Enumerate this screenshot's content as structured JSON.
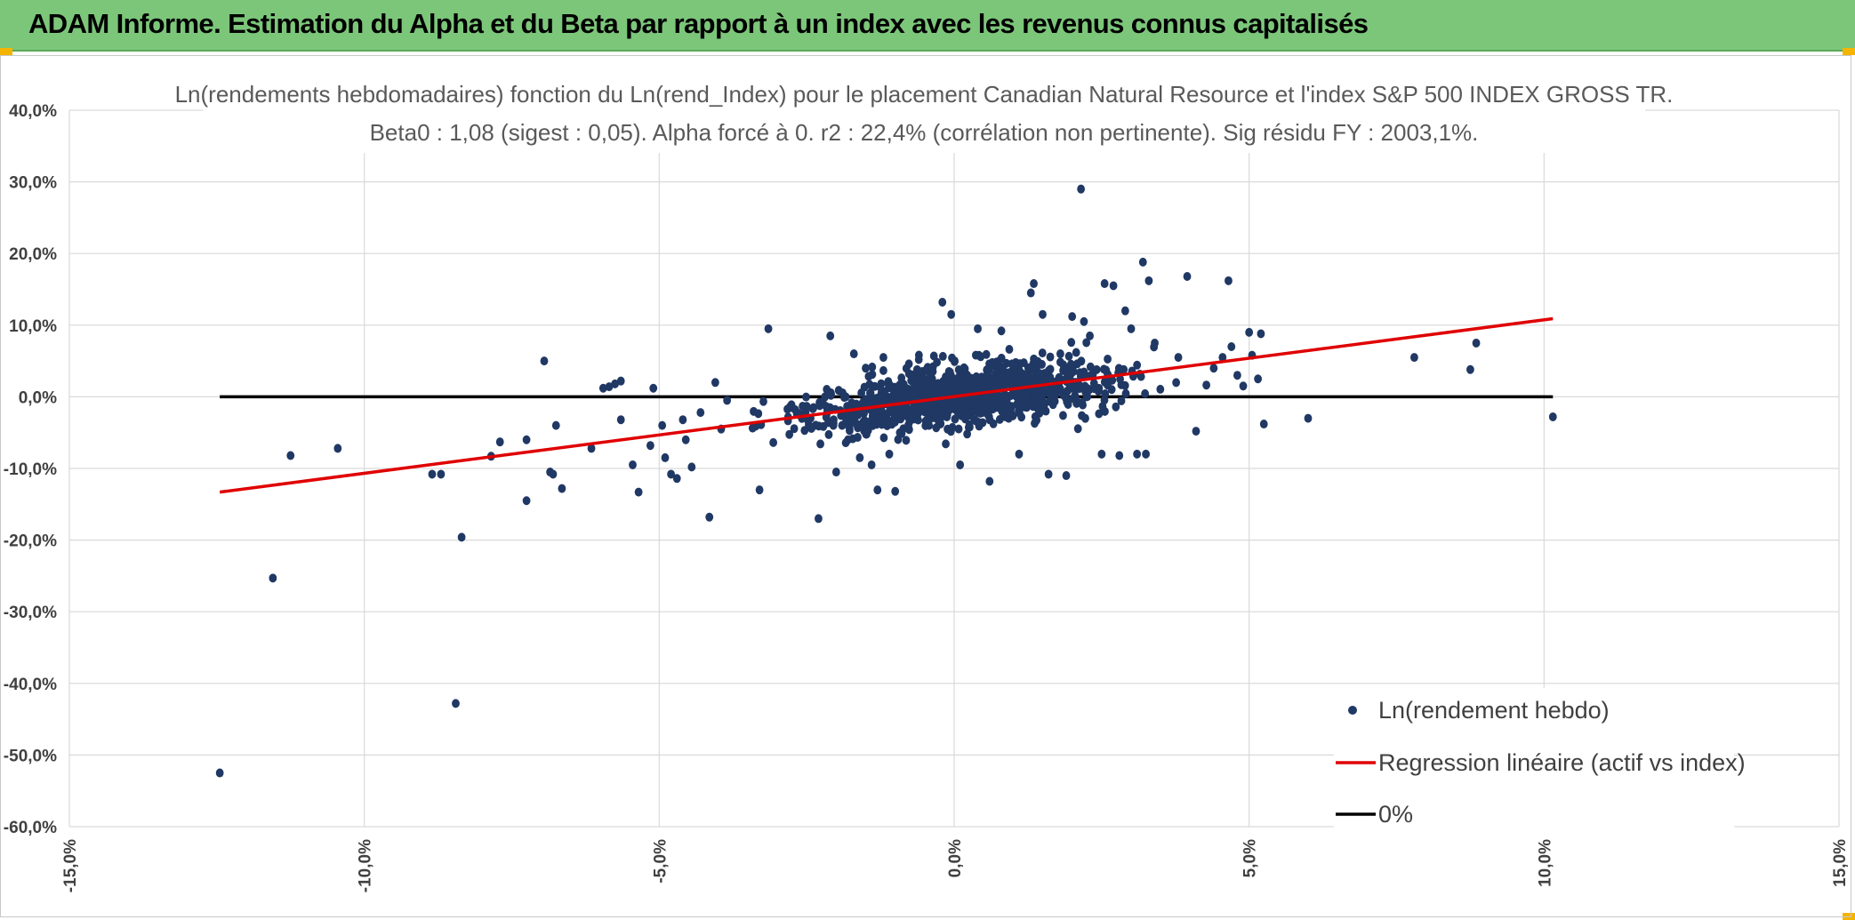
{
  "banner": {
    "title": "ADAM Informe. Estimation du Alpha et du Beta par rapport à un index avec les revenus connus capitalisés"
  },
  "colors": {
    "banner_bg": "#7cc67a",
    "accent": "#f5b400",
    "points": "#203864",
    "regression": "#e00000",
    "zero_line": "#000000",
    "grid": "#d9d9d9"
  },
  "chart_data": {
    "type": "scatter",
    "title": "Ln(rendements hebdomadaires) fonction du Ln(rend_Index) pour le placement Canadian Natural Resource et l'index S&P 500 INDEX GROSS TR.",
    "subtitle": "Beta0 : 1,08 (sigest : 0,05). Alpha forcé à 0. r2 : 22,4% (corrélation non pertinente). Sig résidu FY : 2003,1%.",
    "xlabel": "",
    "ylabel": "",
    "xlim": [
      -0.15,
      0.15
    ],
    "ylim": [
      -0.6,
      0.4
    ],
    "x_ticks": [
      -0.15,
      -0.1,
      -0.05,
      0.0,
      0.05,
      0.1,
      0.15
    ],
    "x_tick_labels": [
      "-15,0%",
      "-10,0%",
      "-5,0%",
      "0,0%",
      "5,0%",
      "10,0%",
      "15,0%"
    ],
    "y_ticks": [
      0.4,
      0.3,
      0.2,
      0.1,
      0.0,
      -0.1,
      -0.2,
      -0.3,
      -0.4,
      -0.5,
      -0.6
    ],
    "y_tick_labels": [
      "40,0%",
      "30,0%",
      "20,0%",
      "10,0%",
      "0,0%",
      "-10,0%",
      "-20,0%",
      "-30,0%",
      "-40,0%",
      "-50,0%",
      "-60,0%"
    ],
    "grid": true,
    "legend_position": "bottom-right",
    "series": [
      {
        "name": "Ln(rendement hebdo)",
        "kind": "scatter",
        "points": [
          [
            -0.1245,
            -0.525
          ],
          [
            -0.1155,
            -0.253
          ],
          [
            -0.1125,
            -0.082
          ],
          [
            -0.1045,
            -0.072
          ],
          [
            -0.0885,
            -0.108
          ],
          [
            -0.087,
            -0.108
          ],
          [
            -0.0835,
            -0.196
          ],
          [
            -0.0845,
            -0.428
          ],
          [
            -0.0785,
            -0.083
          ],
          [
            -0.077,
            -0.063
          ],
          [
            -0.0725,
            -0.145
          ],
          [
            -0.0725,
            -0.06
          ],
          [
            -0.0695,
            0.05
          ],
          [
            -0.0685,
            -0.105
          ],
          [
            -0.068,
            -0.108
          ],
          [
            -0.0675,
            -0.04
          ],
          [
            -0.0665,
            -0.128
          ],
          [
            -0.0615,
            -0.072
          ],
          [
            -0.0595,
            0.012
          ],
          [
            -0.0585,
            0.014
          ],
          [
            -0.0575,
            0.018
          ],
          [
            -0.0565,
            0.022
          ],
          [
            -0.0565,
            -0.032
          ],
          [
            -0.0545,
            -0.095
          ],
          [
            -0.0535,
            -0.133
          ],
          [
            -0.0515,
            -0.068
          ],
          [
            -0.051,
            0.012
          ],
          [
            -0.0495,
            -0.04
          ],
          [
            -0.049,
            -0.085
          ],
          [
            -0.048,
            -0.108
          ],
          [
            -0.047,
            -0.114
          ],
          [
            -0.046,
            -0.032
          ],
          [
            -0.0455,
            -0.06
          ],
          [
            -0.0445,
            -0.098
          ],
          [
            -0.043,
            -0.022
          ],
          [
            -0.0415,
            -0.168
          ],
          [
            -0.0405,
            0.02
          ],
          [
            -0.0395,
            -0.045
          ],
          [
            -0.0385,
            -0.005
          ],
          [
            -0.033,
            -0.13
          ],
          [
            -0.0315,
            0.095
          ],
          [
            -0.023,
            -0.17
          ],
          [
            -0.021,
            0.085
          ],
          [
            -0.02,
            -0.105
          ],
          [
            -0.019,
            -0.04
          ],
          [
            -0.018,
            -0.06
          ],
          [
            -0.017,
            0.06
          ],
          [
            -0.016,
            -0.085
          ],
          [
            -0.015,
            0.04
          ],
          [
            -0.014,
            -0.095
          ],
          [
            -0.013,
            -0.13
          ],
          [
            -0.012,
            0.055
          ],
          [
            -0.011,
            -0.08
          ],
          [
            -0.01,
            -0.132
          ],
          [
            -0.006,
            0.052
          ],
          [
            -0.002,
            0.132
          ],
          [
            -0.0005,
            0.115
          ],
          [
            0.001,
            -0.095
          ],
          [
            0.004,
            0.095
          ],
          [
            0.006,
            -0.118
          ],
          [
            0.008,
            0.092
          ],
          [
            0.011,
            -0.08
          ],
          [
            0.013,
            0.145
          ],
          [
            0.0135,
            0.158
          ],
          [
            0.015,
            0.115
          ],
          [
            0.016,
            -0.108
          ],
          [
            0.018,
            0.06
          ],
          [
            0.019,
            -0.11
          ],
          [
            0.02,
            0.112
          ],
          [
            0.0215,
            0.29
          ],
          [
            0.022,
            0.105
          ],
          [
            0.023,
            0.085
          ],
          [
            0.025,
            -0.08
          ],
          [
            0.0255,
            0.158
          ],
          [
            0.027,
            0.155
          ],
          [
            0.028,
            -0.082
          ],
          [
            0.029,
            0.12
          ],
          [
            0.03,
            0.095
          ],
          [
            0.031,
            -0.08
          ],
          [
            0.032,
            0.188
          ],
          [
            0.0325,
            -0.08
          ],
          [
            0.033,
            0.162
          ],
          [
            0.034,
            0.075
          ],
          [
            0.038,
            0.055
          ],
          [
            0.0395,
            0.168
          ],
          [
            0.041,
            -0.048
          ],
          [
            0.044,
            0.04
          ],
          [
            0.0455,
            0.055
          ],
          [
            0.0465,
            0.162
          ],
          [
            0.047,
            0.07
          ],
          [
            0.048,
            0.03
          ],
          [
            0.049,
            0.015
          ],
          [
            0.05,
            0.09
          ],
          [
            0.0505,
            0.058
          ],
          [
            0.0515,
            0.025
          ],
          [
            0.052,
            0.088
          ],
          [
            0.0525,
            -0.038
          ],
          [
            0.06,
            -0.03
          ],
          [
            0.078,
            0.055
          ],
          [
            0.0875,
            0.038
          ],
          [
            0.0885,
            0.075
          ],
          [
            0.1015,
            -0.028
          ]
        ],
        "dense_cluster": {
          "count": 1050,
          "x_center": 0.0015,
          "x_spread": 0.0185,
          "y_slope": 1.08,
          "y_spread": 0.03,
          "x_min": -0.04,
          "x_max": 0.048
        }
      },
      {
        "name": "Regression linéaire (actif vs index)",
        "kind": "line",
        "points": [
          [
            -0.1245,
            -0.133
          ],
          [
            0.1015,
            0.109
          ]
        ]
      },
      {
        "name": "0%",
        "kind": "line",
        "points": [
          [
            -0.1245,
            0.0
          ],
          [
            0.1015,
            0.0
          ]
        ]
      }
    ]
  }
}
